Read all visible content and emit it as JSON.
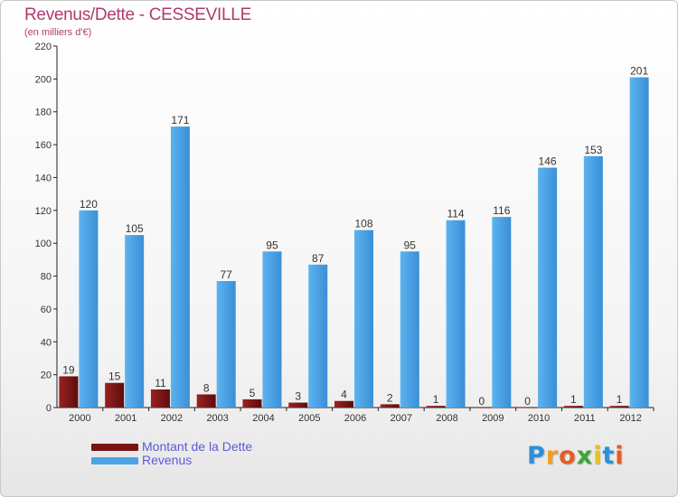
{
  "header": {
    "title": "Revenus/Dette - CESSEVILLE",
    "subtitle": "(en milliers d'€)"
  },
  "legend": {
    "items": [
      {
        "label": "Montant de la Dette",
        "color": "#7a1212"
      },
      {
        "label": "Revenus",
        "color": "#4aa3e6"
      }
    ]
  },
  "logo": {
    "letters": [
      {
        "char": "P",
        "color": "#2e8fd8"
      },
      {
        "char": "r",
        "color": "#f0a020"
      },
      {
        "char": "o",
        "color": "#e85a20"
      },
      {
        "char": "x",
        "color": "#3aa835"
      },
      {
        "char": "i",
        "color": "#e8c020"
      },
      {
        "char": "t",
        "color": "#2e8fd8"
      },
      {
        "char": "i",
        "color": "#e85a20"
      }
    ]
  },
  "chart_data": {
    "type": "bar",
    "title": "Revenus/Dette - CESSEVILLE",
    "ylabel": "(en milliers d'€)",
    "xlabel": "",
    "ylim": [
      0,
      220
    ],
    "yticks": [
      0,
      20,
      40,
      60,
      80,
      100,
      120,
      140,
      160,
      180,
      200,
      220
    ],
    "grid": false,
    "legend_position": "bottom-left",
    "categories": [
      "2000",
      "2001",
      "2002",
      "2003",
      "2004",
      "2005",
      "2006",
      "2007",
      "2008",
      "2009",
      "2010",
      "2011",
      "2012"
    ],
    "series": [
      {
        "name": "Montant de la Dette",
        "color": "#7a1212",
        "values": [
          19,
          15,
          11,
          8,
          5,
          3,
          4,
          2,
          1,
          0,
          0,
          1,
          1
        ]
      },
      {
        "name": "Revenus",
        "color": "#4aa3e6",
        "values": [
          120,
          105,
          171,
          77,
          95,
          87,
          108,
          95,
          114,
          116,
          146,
          153,
          201
        ]
      }
    ]
  }
}
